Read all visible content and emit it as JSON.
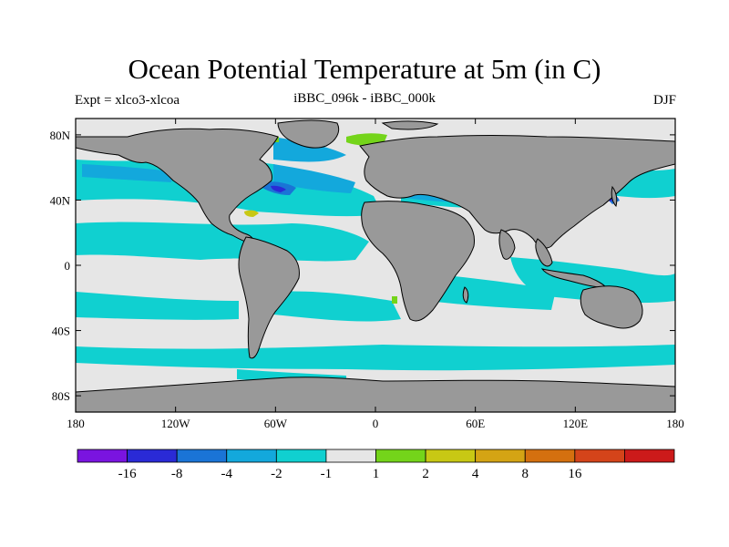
{
  "title": "Ocean Potential Temperature at 5m (in C)",
  "subtitle_left": "Expt = xlco3-xlcoa",
  "subtitle_center": "iBBC_096k - iBBC_000k",
  "subtitle_right": "DJF",
  "map": {
    "projection": "cylindrical-equidistant",
    "lon_range": [
      -180,
      180
    ],
    "lat_range": [
      -90,
      90
    ],
    "land_color": "#999999",
    "coast_color": "#000000",
    "x_ticks": [
      {
        "lon": -180,
        "label": "180"
      },
      {
        "lon": -120,
        "label": "120W"
      },
      {
        "lon": -60,
        "label": "60W"
      },
      {
        "lon": 0,
        "label": "0"
      },
      {
        "lon": 60,
        "label": "60E"
      },
      {
        "lon": 120,
        "label": "120E"
      },
      {
        "lon": 180,
        "label": "180"
      }
    ],
    "y_ticks": [
      {
        "lat": 80,
        "label": "80N"
      },
      {
        "lat": 40,
        "label": "40N"
      },
      {
        "lat": 0,
        "label": "0"
      },
      {
        "lat": -40,
        "label": "40S"
      },
      {
        "lat": -80,
        "label": "80S"
      }
    ]
  },
  "colorbar": {
    "colors": [
      "#7a14e0",
      "#2a2ad6",
      "#1a74d6",
      "#13a8dc",
      "#10d0d0",
      "#e6e6e6",
      "#74d41a",
      "#c8c814",
      "#d4a414",
      "#d4700f",
      "#d4441a",
      "#cc1a1a"
    ],
    "labels": [
      "-16",
      "-8",
      "-4",
      "-2",
      "-1",
      "1",
      "2",
      "4",
      "8",
      "16"
    ]
  }
}
